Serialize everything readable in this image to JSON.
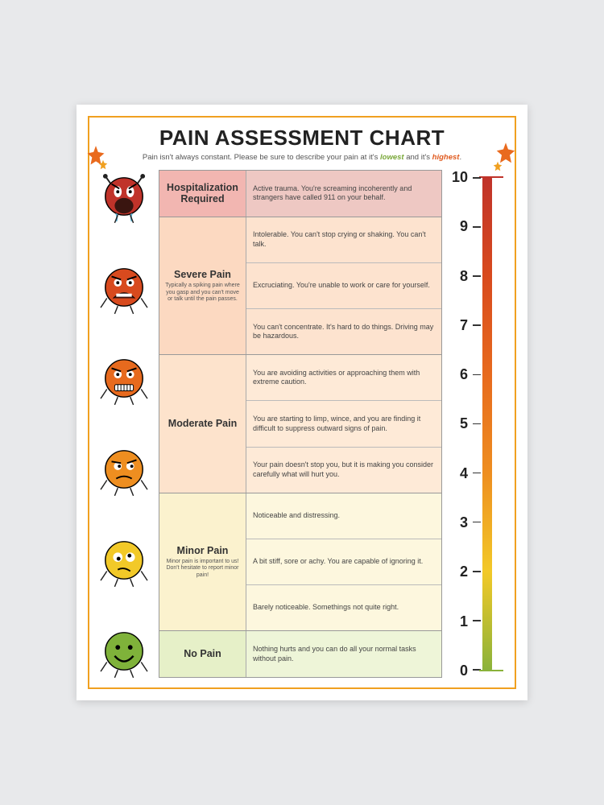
{
  "title": "PAIN ASSESSMENT CHART",
  "subtitle_pre": "Pain isn't always constant. Please be sure to describe your pain at it's ",
  "subtitle_low": "lowest",
  "subtitle_mid": " and it's ",
  "subtitle_high": "highest",
  "subtitle_post": ".",
  "faces": [
    {
      "fill": "#c0332a",
      "mood": "screaming"
    },
    {
      "fill": "#d84a1e",
      "mood": "crying"
    },
    {
      "fill": "#e76a1e",
      "mood": "grimace"
    },
    {
      "fill": "#ee8e20",
      "mood": "annoyed"
    },
    {
      "fill": "#f2c928",
      "mood": "uneasy"
    },
    {
      "fill": "#7fb23a",
      "mood": "happy"
    }
  ],
  "categories": [
    {
      "name": "Hospitalization Required",
      "sub": "",
      "label_bg": "#f2b6b1",
      "rows": [
        {
          "bg": "#eec8c3",
          "text": "Active trauma. You're screaming incoherently and strangers have called 911 on your behalf."
        }
      ]
    },
    {
      "name": "Severe Pain",
      "sub": "Typically a spiking pain where you gasp and you can't move or talk until the pain passes.",
      "label_bg": "#fcd9c1",
      "rows": [
        {
          "bg": "#fde3cf",
          "text": "Intolerable. You can't stop crying or shaking. You can't talk."
        },
        {
          "bg": "#fde3cf",
          "text": "Excruciating. You're unable to work or care for yourself."
        },
        {
          "bg": "#fde3cf",
          "text": "You can't concentrate. It's hard to do things. Driving may be hazardous."
        }
      ]
    },
    {
      "name": "Moderate Pain",
      "sub": "",
      "label_bg": "#fde3cc",
      "rows": [
        {
          "bg": "#feead7",
          "text": "You are avoiding activities or approaching them with extreme caution."
        },
        {
          "bg": "#feead7",
          "text": "You are starting to limp, wince, and you are finding it difficult to suppress outward signs of pain."
        },
        {
          "bg": "#feead7",
          "text": "Your pain doesn't stop you, but it is making you consider carefully what will hurt you."
        }
      ]
    },
    {
      "name": "Minor Pain",
      "sub": "Minor pain is important to us! Don't hesitate to report minor pain!",
      "label_bg": "#fbf2ce",
      "rows": [
        {
          "bg": "#fdf7de",
          "text": "Noticeable and distressing."
        },
        {
          "bg": "#fdf7de",
          "text": "A bit stiff, sore or achy. You are capable of ignoring it."
        },
        {
          "bg": "#fdf7de",
          "text": "Barely noticeable.  Somethings not quite right."
        }
      ]
    },
    {
      "name": "No Pain",
      "sub": "",
      "label_bg": "#e6f0c8",
      "rows": [
        {
          "bg": "#eef5d8",
          "text": "Nothing hurts and you can do all your normal tasks without pain."
        }
      ]
    }
  ],
  "scale": {
    "numbers": [
      "10",
      "9",
      "8",
      "7",
      "6",
      "5",
      "4",
      "3",
      "2",
      "1",
      "0"
    ],
    "gradient_stops": [
      "#c0332a",
      "#d84a1e",
      "#e76a1e",
      "#ee8e20",
      "#f2c928",
      "#8ab23a"
    ]
  },
  "colors": {
    "page_bg": "#e8e9eb",
    "poster_bg": "#ffffff",
    "border": "#f0a020"
  }
}
